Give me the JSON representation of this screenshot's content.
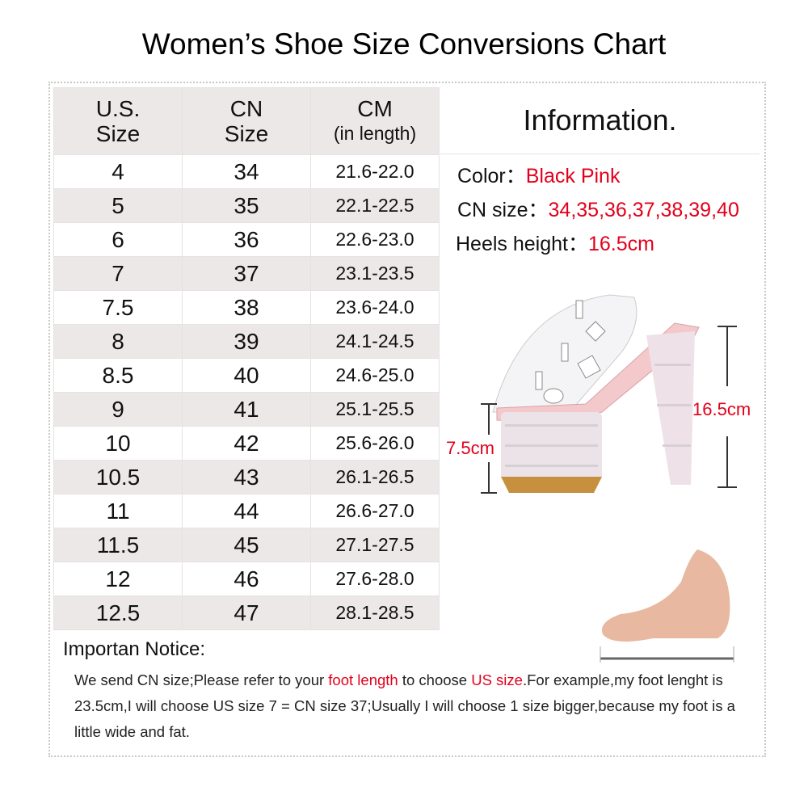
{
  "title": "Women’s Shoe Size Conversions Chart",
  "table": {
    "headers": [
      {
        "line1": "U.S.",
        "line2": "Size"
      },
      {
        "line1": "CN",
        "line2": "Size"
      },
      {
        "line1": "CM",
        "line2": "(in length)"
      }
    ],
    "rows": [
      [
        "4",
        "34",
        "21.6-22.0"
      ],
      [
        "5",
        "35",
        "22.1-22.5"
      ],
      [
        "6",
        "36",
        "22.6-23.0"
      ],
      [
        "7",
        "37",
        "23.1-23.5"
      ],
      [
        "7.5",
        "38",
        "23.6-24.0"
      ],
      [
        "8",
        "39",
        "24.1-24.5"
      ],
      [
        "8.5",
        "40",
        "24.6-25.0"
      ],
      [
        "9",
        "41",
        "25.1-25.5"
      ],
      [
        "10",
        "42",
        "25.6-26.0"
      ],
      [
        "10.5",
        "43",
        "26.1-26.5"
      ],
      [
        "11",
        "44",
        "26.6-27.0"
      ],
      [
        "11.5",
        "45",
        "27.1-27.5"
      ],
      [
        "12",
        "46",
        "27.6-28.0"
      ],
      [
        "12.5",
        "47",
        "28.1-28.5"
      ]
    ]
  },
  "information": {
    "heading": "Information.",
    "color_label": "Color：",
    "color_value": "Black Pink",
    "size_label": "CN size：",
    "size_value": "34,35,36,37,38,39,40",
    "heel_label": "Heels height：",
    "heel_value": "16.5cm"
  },
  "shoe_image": {
    "platform_label": "7.5cm",
    "heel_label": "16.5cm"
  },
  "notice": {
    "title": "Importan Notice:",
    "segments": [
      {
        "text": "We send CN size;Please refer to your ",
        "red": false
      },
      {
        "text": "foot length",
        "red": true
      },
      {
        "text": " to choose ",
        "red": false
      },
      {
        "text": "US size",
        "red": true
      },
      {
        "text": ".For example,my foot lenght is 23.5cm,I will choose US size 7 = CN size 37;Usually I will choose 1 size bigger,because my foot is a little wide and fat.",
        "red": false
      }
    ]
  },
  "colors": {
    "accent": "#e3001b",
    "row_alt": "#ede8e8"
  }
}
